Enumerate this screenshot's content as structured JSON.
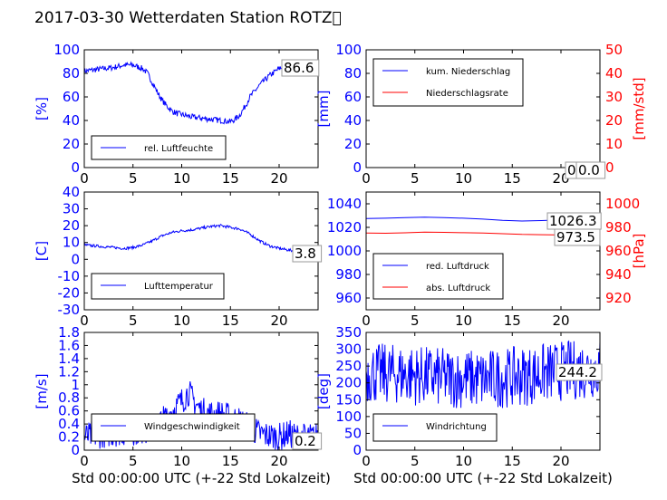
{
  "title": "2017-03-30 Wetterdaten Station ROTZ\u0000",
  "xlabel": "Std 00:00:00 UTC (+-22 Std Lokalzeit)",
  "colors": {
    "primary": "#0000ff",
    "secondary": "#ff0000",
    "axis": "#000000"
  },
  "chart_data": [
    {
      "type": "line",
      "ylabel": "[%]",
      "xlim": [
        0,
        24
      ],
      "ylim": [
        0,
        100
      ],
      "xticks": [
        0,
        5,
        10,
        15,
        20
      ],
      "yticks": [
        0,
        20,
        40,
        60,
        80,
        100
      ],
      "legend": {
        "placement": "lower-left",
        "entries": [
          "rel. Luftfeuchte"
        ]
      },
      "annotations": [
        "86.6"
      ],
      "series": [
        {
          "name": "rel. Luftfeuchte",
          "color": "#0000ff",
          "noise": 2.5,
          "x": [
            0,
            1,
            2,
            3,
            4,
            5,
            6,
            6.5,
            7,
            7.5,
            8,
            8.5,
            9,
            9.5,
            10,
            11,
            12,
            13,
            14,
            15,
            15.5,
            16,
            16.5,
            17,
            18,
            19,
            20,
            21,
            22,
            23,
            24
          ],
          "y": [
            82,
            83,
            84,
            85,
            87,
            87,
            84,
            80,
            72,
            64,
            57,
            52,
            48,
            46,
            45,
            43,
            42,
            41,
            40,
            39,
            41,
            45,
            52,
            60,
            70,
            78,
            84,
            86,
            87,
            86.6,
            86.6
          ]
        }
      ]
    },
    {
      "type": "line",
      "ylabel": "[mm]",
      "ylabel2": "[mm/std]",
      "xlim": [
        0,
        24
      ],
      "ylim": [
        0,
        100
      ],
      "ylim2": [
        0,
        50
      ],
      "xticks": [
        0,
        5,
        10,
        15,
        20
      ],
      "yticks": [
        0,
        20,
        40,
        60,
        80,
        100
      ],
      "yticks2": [
        0,
        10,
        20,
        30,
        40,
        50
      ],
      "legend": {
        "placement": "upper-left",
        "entries": [
          "kum. Niederschlag",
          "Niederschlagsrate"
        ]
      },
      "annotations": [
        "0.0",
        "0.0"
      ],
      "series": [
        {
          "name": "kum. Niederschlag",
          "color": "#0000ff",
          "noise": 0,
          "x": [
            0,
            24
          ],
          "y": [
            0,
            0
          ]
        },
        {
          "name": "Niederschlagsrate",
          "color": "#ff0000",
          "noise": 0,
          "axis": "right",
          "x": [
            0,
            24
          ],
          "y": [
            0,
            0
          ]
        }
      ]
    },
    {
      "type": "line",
      "ylabel": "[C]",
      "xlim": [
        0,
        24
      ],
      "ylim": [
        -30,
        40
      ],
      "xticks": [
        0,
        5,
        10,
        15,
        20
      ],
      "yticks": [
        -30,
        -20,
        -10,
        0,
        10,
        20,
        30,
        40
      ],
      "legend": {
        "placement": "lower-left",
        "entries": [
          "Lufttemperatur"
        ]
      },
      "annotations": [
        "3.8"
      ],
      "series": [
        {
          "name": "Lufttemperatur",
          "color": "#0000ff",
          "noise": 0.8,
          "x": [
            0,
            1,
            2,
            3,
            4,
            5,
            6,
            7,
            8,
            9,
            10,
            11,
            12,
            13,
            14,
            15,
            16,
            17,
            18,
            19,
            20,
            21,
            22,
            23,
            24
          ],
          "y": [
            8.5,
            8,
            7.5,
            7,
            6.5,
            7,
            8.5,
            11,
            14,
            16,
            17,
            17.5,
            18.5,
            19.5,
            20,
            19,
            18,
            15,
            11,
            8,
            6.5,
            5.5,
            4.5,
            3.8,
            3.8
          ]
        }
      ]
    },
    {
      "type": "line",
      "ylabel2": "[hPa]",
      "xlim": [
        0,
        24
      ],
      "ylim": [
        950,
        1050
      ],
      "ylim2": [
        910,
        1010
      ],
      "xticks": [
        0,
        5,
        10,
        15,
        20
      ],
      "yticks": [
        960,
        980,
        1000,
        1020,
        1040
      ],
      "yticks2": [
        920,
        940,
        960,
        980,
        1000
      ],
      "legend": {
        "placement": "lower-left",
        "entries": [
          "red. Luftdruck",
          "abs. Luftdruck"
        ]
      },
      "annotations": [
        "1026.3",
        "973.5"
      ],
      "series": [
        {
          "name": "red. Luftdruck",
          "color": "#0000ff",
          "noise": 0,
          "x": [
            0,
            2,
            4,
            6,
            8,
            10,
            12,
            14,
            16,
            18,
            20,
            22,
            24
          ],
          "y": [
            1027.5,
            1027.8,
            1028.2,
            1028.6,
            1028.3,
            1027.8,
            1027,
            1026,
            1025.4,
            1025.8,
            1026.3,
            1026.3,
            1026.3
          ]
        },
        {
          "name": "abs. Luftdruck",
          "color": "#ff0000",
          "noise": 0,
          "axis": "right",
          "x": [
            0,
            2,
            4,
            6,
            8,
            10,
            12,
            14,
            16,
            18,
            20,
            22,
            24
          ],
          "y": [
            975.2,
            975,
            975.4,
            976,
            975.8,
            975.5,
            975.2,
            974.6,
            974,
            973.8,
            973.5,
            973.5,
            973.5
          ]
        }
      ]
    },
    {
      "type": "line",
      "ylabel": "[m/s]",
      "xlim": [
        0,
        24
      ],
      "ylim": [
        0,
        1.8
      ],
      "xticks": [
        0,
        5,
        10,
        15,
        20
      ],
      "yticks": [
        0,
        0.2,
        0.4,
        0.6,
        0.8,
        1.0,
        1.2,
        1.4,
        1.6,
        1.8
      ],
      "legend": {
        "placement": "lower-left",
        "entries": [
          "Windgeschwindigkeit"
        ]
      },
      "annotations": [
        "0.2"
      ],
      "series": [
        {
          "name": "Windgeschwindigkeit",
          "color": "#0000ff",
          "noise": 0.22,
          "x": [
            0,
            2,
            4,
            6,
            7,
            8,
            9,
            10,
            10.7,
            11,
            12,
            13,
            14,
            15,
            16,
            17,
            18,
            19,
            20,
            21,
            22,
            23,
            24
          ],
          "y": [
            0.2,
            0.25,
            0.28,
            0.3,
            0.35,
            0.45,
            0.6,
            0.75,
            0.9,
            0.8,
            0.6,
            0.55,
            0.55,
            0.5,
            0.45,
            0.35,
            0.25,
            0.22,
            0.2,
            0.25,
            0.2,
            0.2,
            0.2
          ]
        }
      ]
    },
    {
      "type": "line",
      "ylabel": "[deg]",
      "xlim": [
        0,
        24
      ],
      "ylim": [
        0,
        350
      ],
      "xticks": [
        0,
        5,
        10,
        15,
        20
      ],
      "yticks": [
        0,
        50,
        100,
        150,
        200,
        250,
        300,
        350
      ],
      "legend": {
        "placement": "lower-left",
        "entries": [
          "Windrichtung"
        ]
      },
      "annotations": [
        "244.2"
      ],
      "series": [
        {
          "name": "Windrichtung",
          "color": "#0000ff",
          "noise": 90,
          "x": [
            0,
            4,
            8,
            12,
            16,
            20,
            24
          ],
          "y": [
            230,
            225,
            215,
            210,
            220,
            235,
            244.2
          ]
        }
      ]
    }
  ]
}
